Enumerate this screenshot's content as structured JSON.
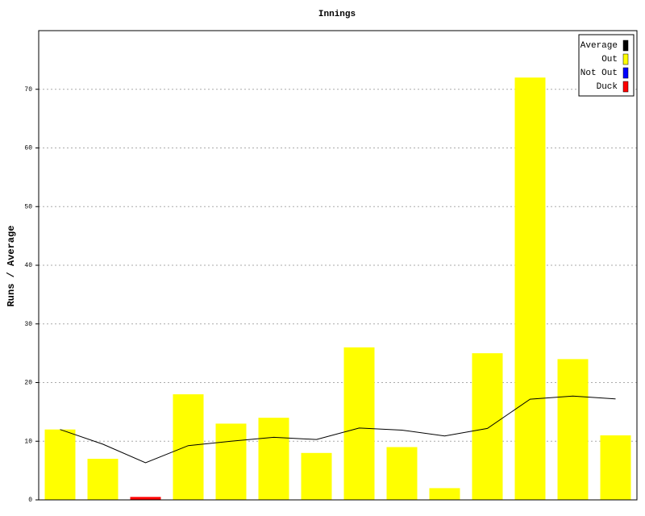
{
  "chart_data": {
    "type": "bar",
    "title": "Innings",
    "y_label": "Runs / Average",
    "categories": [
      null,
      null,
      null,
      null,
      null,
      null,
      null,
      null,
      null,
      null,
      null,
      null,
      null,
      null
    ],
    "series": [
      {
        "name": "Average",
        "type": "line",
        "color": "#000000",
        "values": [
          12,
          9.5,
          6.33,
          9.25,
          10,
          10.67,
          10.29,
          12.25,
          11.89,
          10.9,
          12.18,
          17.17,
          17.69,
          17.21
        ]
      },
      {
        "name": "Out",
        "type": "bar",
        "color": "#ffff00",
        "values": [
          12,
          7,
          null,
          18,
          13,
          14,
          8,
          26,
          9,
          2,
          25,
          72,
          24,
          11
        ]
      },
      {
        "name": "Not Out",
        "type": "bar",
        "color": "#0000ff",
        "values": [
          null,
          null,
          null,
          null,
          null,
          null,
          null,
          null,
          null,
          null,
          null,
          null,
          null,
          null
        ]
      },
      {
        "name": "Duck",
        "type": "bar",
        "color": "#ff0000",
        "values": [
          null,
          null,
          0.5,
          null,
          null,
          null,
          null,
          null,
          null,
          null,
          null,
          null,
          null,
          null
        ]
      }
    ],
    "ylim": [
      0,
      80
    ],
    "yticks": [
      0,
      10,
      20,
      30,
      40,
      50,
      60,
      70
    ],
    "grid": true,
    "legend": "top-right"
  }
}
